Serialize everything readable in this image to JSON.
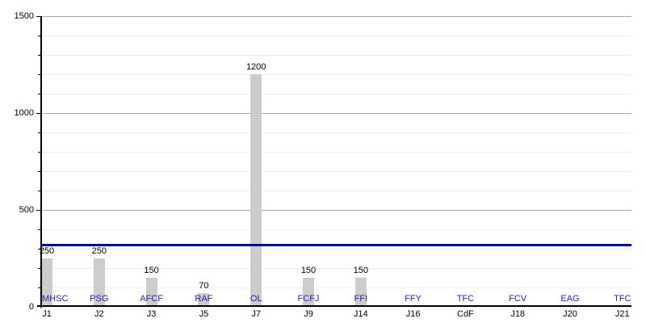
{
  "chart_data": {
    "type": "bar",
    "title": "",
    "xlabel": "",
    "ylabel": "",
    "categories": [
      "J1",
      "J2",
      "J3",
      "J5",
      "J7",
      "J9",
      "J14",
      "J16",
      "CdF",
      "J18",
      "J20",
      "J21"
    ],
    "bar_labels": [
      "MHSC",
      "PSG",
      "AFCF",
      "RAF",
      "OL",
      "FCFJ",
      "FFI",
      "FFY",
      "TFC",
      "FCV",
      "EAG",
      "TFC"
    ],
    "values": [
      250,
      250,
      150,
      70,
      1200,
      150,
      150,
      null,
      null,
      null,
      null,
      null
    ],
    "value_labels": [
      "250",
      "250",
      "150",
      "70",
      "1200",
      "150",
      "150",
      "",
      "",
      "",
      "",
      ""
    ],
    "ylim": [
      0,
      1500
    ],
    "yticks": [
      0,
      500,
      1000,
      1500
    ],
    "ytick_labels": [
      "0",
      "500",
      "1000",
      "1500"
    ],
    "minor_grid_step": 100,
    "grid": "on",
    "legend": "none",
    "reference_line": {
      "value": 320
    },
    "colors": {
      "bar": "#cccccc",
      "reference_line": "#001289",
      "team_label": "#2222c2",
      "axis": "#000000",
      "value_label": "#000000",
      "category_label": "#000000",
      "grid_minor": "#ededed",
      "grid_major": "#a6a6a6",
      "background": "#ffffff"
    }
  }
}
